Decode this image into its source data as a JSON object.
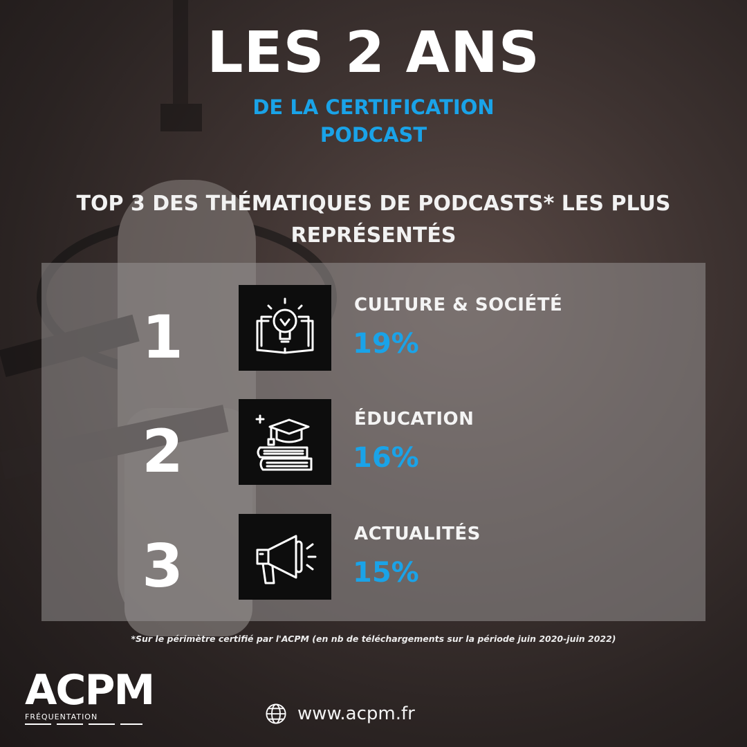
{
  "header": {
    "title": "LES 2 ANS",
    "subtitle_line1": "DE LA CERTIFICATION",
    "subtitle_line2": "PODCAST"
  },
  "heading": {
    "line1": "TOP 3 DES THÉMATIQUES DE PODCASTS* LES PLUS",
    "line2": "REPRÉSENTÉS"
  },
  "ranking": [
    {
      "rank": "1",
      "category": "CULTURE & SOCIÉTÉ",
      "percent": "19%",
      "icon": "lightbulb-book-icon"
    },
    {
      "rank": "2",
      "category": "ÉDUCATION",
      "percent": "16%",
      "icon": "graduation-books-icon"
    },
    {
      "rank": "3",
      "category": "ACTUALITÉS",
      "percent": "15%",
      "icon": "megaphone-icon"
    }
  ],
  "footnote": "*Sur le périmètre certifié par l'ACPM (en nb de téléchargements sur la période juin 2020-juin 2022)",
  "footer": {
    "logo_text": "ACPM",
    "logo_sub": "FRÉQUENTATION",
    "website": "www.acpm.fr",
    "website_icon": "globe-icon"
  },
  "colors": {
    "accent": "#1aa3e8",
    "icon_box": "#0d0d0d",
    "text": "#ffffff"
  }
}
